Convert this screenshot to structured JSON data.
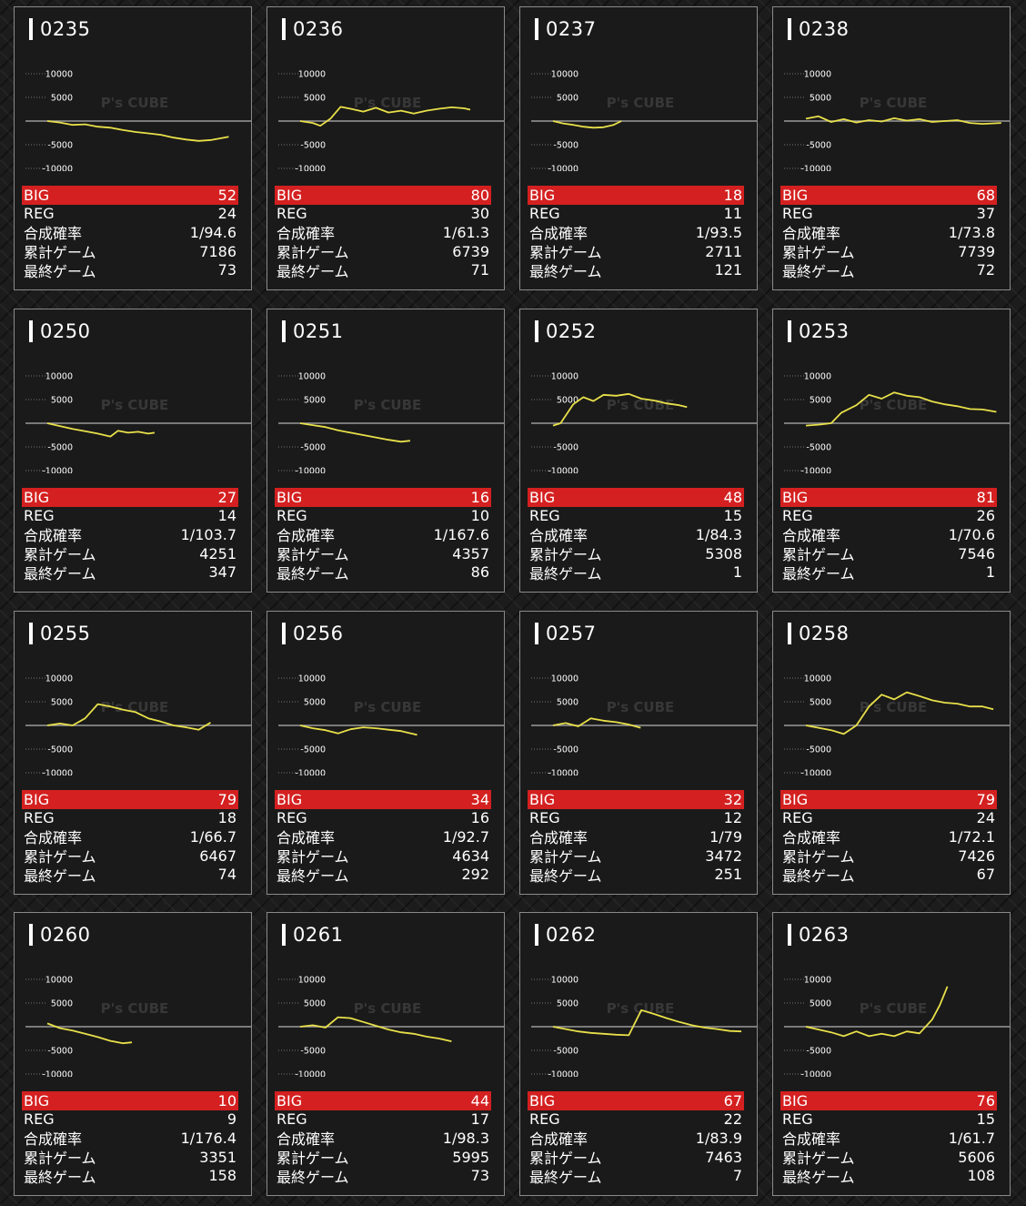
{
  "axis_labels": [
    "10000",
    "5000",
    "-5000",
    "-10000"
  ],
  "watermark": "P's CUBE",
  "stat_labels": {
    "big": "BIG",
    "reg": "REG",
    "rate": "合成確率",
    "total_games": "累計ゲーム",
    "last_game": "最終ゲーム"
  },
  "colors": {
    "background": "#1c1c1c",
    "card": "#1a1a1a",
    "card_border": "#8a8a8a",
    "big_row": "#d42020",
    "graph_line": "#e8e04a",
    "zero_line": "#9a9a9a",
    "text": "#ffffff"
  },
  "machines": [
    {
      "id": "0235",
      "big": "52",
      "reg": "24",
      "rate": "1/94.6",
      "total_games": "7186",
      "last_game": "73",
      "graph": [
        [
          0,
          0
        ],
        [
          500,
          -300
        ],
        [
          1000,
          -800
        ],
        [
          1500,
          -700
        ],
        [
          2000,
          -1200
        ],
        [
          2500,
          -1400
        ],
        [
          3000,
          -1900
        ],
        [
          3500,
          -2300
        ],
        [
          4000,
          -2600
        ],
        [
          4500,
          -2900
        ],
        [
          5000,
          -3500
        ],
        [
          5500,
          -3900
        ],
        [
          6000,
          -4200
        ],
        [
          6500,
          -4000
        ],
        [
          7000,
          -3500
        ],
        [
          7186,
          -3300
        ]
      ]
    },
    {
      "id": "0236",
      "big": "80",
      "reg": "30",
      "rate": "1/61.3",
      "total_games": "6739",
      "last_game": "71",
      "graph": [
        [
          0,
          0
        ],
        [
          500,
          -400
        ],
        [
          800,
          -1000
        ],
        [
          1200,
          500
        ],
        [
          1600,
          3000
        ],
        [
          2000,
          2600
        ],
        [
          2500,
          2000
        ],
        [
          3000,
          2800
        ],
        [
          3500,
          1800
        ],
        [
          4000,
          2200
        ],
        [
          4500,
          1600
        ],
        [
          5000,
          2200
        ],
        [
          5500,
          2600
        ],
        [
          6000,
          2900
        ],
        [
          6500,
          2700
        ],
        [
          6739,
          2400
        ]
      ]
    },
    {
      "id": "0237",
      "big": "18",
      "reg": "11",
      "rate": "1/93.5",
      "total_games": "2711",
      "last_game": "121",
      "graph": [
        [
          0,
          0
        ],
        [
          400,
          -500
        ],
        [
          800,
          -800
        ],
        [
          1200,
          -1200
        ],
        [
          1600,
          -1400
        ],
        [
          2000,
          -1300
        ],
        [
          2400,
          -800
        ],
        [
          2711,
          0
        ]
      ]
    },
    {
      "id": "0238",
      "big": "68",
      "reg": "37",
      "rate": "1/73.8",
      "total_games": "7739",
      "last_game": "72",
      "graph": [
        [
          0,
          500
        ],
        [
          500,
          1000
        ],
        [
          1000,
          -200
        ],
        [
          1500,
          400
        ],
        [
          2000,
          -300
        ],
        [
          2500,
          200
        ],
        [
          3000,
          -100
        ],
        [
          3500,
          600
        ],
        [
          4000,
          100
        ],
        [
          4500,
          400
        ],
        [
          5000,
          -200
        ],
        [
          5500,
          0
        ],
        [
          6000,
          200
        ],
        [
          6500,
          -400
        ],
        [
          7000,
          -600
        ],
        [
          7739,
          -400
        ]
      ]
    },
    {
      "id": "0250",
      "big": "27",
      "reg": "14",
      "rate": "1/103.7",
      "total_games": "4251",
      "last_game": "347",
      "graph": [
        [
          0,
          0
        ],
        [
          500,
          -600
        ],
        [
          1000,
          -1200
        ],
        [
          1500,
          -1700
        ],
        [
          2000,
          -2200
        ],
        [
          2500,
          -2800
        ],
        [
          2800,
          -1600
        ],
        [
          3200,
          -2000
        ],
        [
          3600,
          -1800
        ],
        [
          4000,
          -2200
        ],
        [
          4251,
          -2000
        ]
      ]
    },
    {
      "id": "0251",
      "big": "16",
      "reg": "10",
      "rate": "1/167.6",
      "total_games": "4357",
      "last_game": "86",
      "graph": [
        [
          0,
          0
        ],
        [
          500,
          -400
        ],
        [
          1000,
          -800
        ],
        [
          1500,
          -1500
        ],
        [
          2000,
          -2000
        ],
        [
          2500,
          -2500
        ],
        [
          3000,
          -3000
        ],
        [
          3500,
          -3500
        ],
        [
          4000,
          -3900
        ],
        [
          4357,
          -3700
        ]
      ]
    },
    {
      "id": "0252",
      "big": "48",
      "reg": "15",
      "rate": "1/84.3",
      "total_games": "5308",
      "last_game": "1",
      "graph": [
        [
          0,
          -500
        ],
        [
          300,
          0
        ],
        [
          800,
          4000
        ],
        [
          1200,
          5500
        ],
        [
          1600,
          4700
        ],
        [
          2000,
          6000
        ],
        [
          2500,
          5800
        ],
        [
          3000,
          6200
        ],
        [
          3500,
          5200
        ],
        [
          4000,
          4800
        ],
        [
          4500,
          4200
        ],
        [
          5000,
          3800
        ],
        [
          5308,
          3400
        ]
      ]
    },
    {
      "id": "0253",
      "big": "81",
      "reg": "26",
      "rate": "1/70.6",
      "total_games": "7546",
      "last_game": "1",
      "graph": [
        [
          0,
          -500
        ],
        [
          500,
          -300
        ],
        [
          1000,
          0
        ],
        [
          1400,
          2200
        ],
        [
          2000,
          3800
        ],
        [
          2500,
          6000
        ],
        [
          3000,
          5200
        ],
        [
          3500,
          6500
        ],
        [
          4000,
          5800
        ],
        [
          4500,
          5500
        ],
        [
          5000,
          4600
        ],
        [
          5500,
          4000
        ],
        [
          6000,
          3600
        ],
        [
          6500,
          3000
        ],
        [
          7000,
          2900
        ],
        [
          7546,
          2400
        ]
      ]
    },
    {
      "id": "0255",
      "big": "79",
      "reg": "18",
      "rate": "1/66.7",
      "total_games": "6467",
      "last_game": "74",
      "graph": [
        [
          0,
          0
        ],
        [
          500,
          400
        ],
        [
          1000,
          0
        ],
        [
          1500,
          1500
        ],
        [
          2000,
          4500
        ],
        [
          2500,
          4000
        ],
        [
          3000,
          3300
        ],
        [
          3500,
          2800
        ],
        [
          4000,
          1500
        ],
        [
          4500,
          800
        ],
        [
          5000,
          0
        ],
        [
          5500,
          -400
        ],
        [
          6000,
          -900
        ],
        [
          6467,
          600
        ]
      ]
    },
    {
      "id": "0256",
      "big": "34",
      "reg": "16",
      "rate": "1/92.7",
      "total_games": "4634",
      "last_game": "292",
      "graph": [
        [
          0,
          0
        ],
        [
          500,
          -600
        ],
        [
          1000,
          -1000
        ],
        [
          1500,
          -1700
        ],
        [
          2000,
          -800
        ],
        [
          2500,
          -400
        ],
        [
          3000,
          -600
        ],
        [
          3500,
          -900
        ],
        [
          4000,
          -1200
        ],
        [
          4634,
          -2000
        ]
      ]
    },
    {
      "id": "0257",
      "big": "32",
      "reg": "12",
      "rate": "1/79",
      "total_games": "3472",
      "last_game": "251",
      "graph": [
        [
          0,
          0
        ],
        [
          500,
          500
        ],
        [
          1000,
          -200
        ],
        [
          1500,
          1500
        ],
        [
          2000,
          1000
        ],
        [
          2500,
          700
        ],
        [
          3000,
          200
        ],
        [
          3472,
          -500
        ]
      ]
    },
    {
      "id": "0258",
      "big": "79",
      "reg": "24",
      "rate": "1/72.1",
      "total_games": "7426",
      "last_game": "67",
      "graph": [
        [
          0,
          0
        ],
        [
          500,
          -500
        ],
        [
          1000,
          -1000
        ],
        [
          1500,
          -1800
        ],
        [
          2000,
          0
        ],
        [
          2500,
          4000
        ],
        [
          3000,
          6500
        ],
        [
          3500,
          5500
        ],
        [
          4000,
          7000
        ],
        [
          4500,
          6200
        ],
        [
          5000,
          5300
        ],
        [
          5500,
          4800
        ],
        [
          6000,
          4600
        ],
        [
          6500,
          4000
        ],
        [
          7000,
          4000
        ],
        [
          7426,
          3400
        ]
      ]
    },
    {
      "id": "0260",
      "big": "10",
      "reg": "9",
      "rate": "1/176.4",
      "total_games": "3351",
      "last_game": "158",
      "graph": [
        [
          0,
          700
        ],
        [
          500,
          -300
        ],
        [
          1000,
          -800
        ],
        [
          1500,
          -1500
        ],
        [
          2000,
          -2200
        ],
        [
          2500,
          -3000
        ],
        [
          3000,
          -3500
        ],
        [
          3351,
          -3300
        ]
      ]
    },
    {
      "id": "0261",
      "big": "44",
      "reg": "17",
      "rate": "1/98.3",
      "total_games": "5995",
      "last_game": "73",
      "graph": [
        [
          0,
          0
        ],
        [
          500,
          300
        ],
        [
          1000,
          -200
        ],
        [
          1500,
          2000
        ],
        [
          2000,
          1800
        ],
        [
          2500,
          1000
        ],
        [
          3000,
          200
        ],
        [
          3500,
          -600
        ],
        [
          4000,
          -1200
        ],
        [
          4500,
          -1500
        ],
        [
          5000,
          -2100
        ],
        [
          5500,
          -2500
        ],
        [
          5995,
          -3100
        ]
      ]
    },
    {
      "id": "0262",
      "big": "67",
      "reg": "22",
      "rate": "1/83.9",
      "total_games": "7463",
      "last_game": "7",
      "graph": [
        [
          0,
          0
        ],
        [
          500,
          -500
        ],
        [
          1000,
          -1000
        ],
        [
          1500,
          -1300
        ],
        [
          2000,
          -1500
        ],
        [
          2500,
          -1700
        ],
        [
          3000,
          -1800
        ],
        [
          3500,
          3500
        ],
        [
          4000,
          2700
        ],
        [
          4500,
          1800
        ],
        [
          5000,
          1000
        ],
        [
          5500,
          300
        ],
        [
          6000,
          -200
        ],
        [
          6500,
          -500
        ],
        [
          7000,
          -900
        ],
        [
          7463,
          -1000
        ]
      ]
    },
    {
      "id": "0263",
      "big": "76",
      "reg": "15",
      "rate": "1/61.7",
      "total_games": "5606",
      "last_game": "108",
      "graph": [
        [
          0,
          0
        ],
        [
          500,
          -600
        ],
        [
          1000,
          -1200
        ],
        [
          1500,
          -2000
        ],
        [
          2000,
          -1000
        ],
        [
          2500,
          -2000
        ],
        [
          3000,
          -1500
        ],
        [
          3500,
          -2000
        ],
        [
          4000,
          -1000
        ],
        [
          4500,
          -1400
        ],
        [
          5000,
          1500
        ],
        [
          5300,
          4500
        ],
        [
          5606,
          8500
        ]
      ]
    }
  ]
}
